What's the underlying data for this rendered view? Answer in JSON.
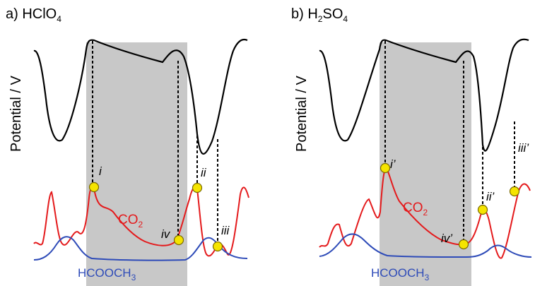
{
  "chart_data": [
    {
      "type": "line",
      "panel": "a",
      "title": {
        "prefix": "a) HClO",
        "sub": "4"
      },
      "ylabel": "Potential / V",
      "colors": {
        "potential": "#000000",
        "co2": "#e41a1c",
        "hcooch3": "#2e4bb8",
        "shade": "#c8c8c8",
        "marker": "#f5e400"
      },
      "series": [
        {
          "name": "CO2",
          "label_main": "CO",
          "label_sub": "2"
        },
        {
          "name": "HCOOCH3",
          "label_main": "HCOOCH",
          "label_sub": "3"
        }
      ],
      "markers": [
        {
          "label": "i"
        },
        {
          "label": "ii"
        },
        {
          "label": "iii"
        },
        {
          "label": "iv"
        }
      ]
    },
    {
      "type": "line",
      "panel": "b",
      "title": {
        "prefix": "b) H",
        "sub1": "2",
        "mid": "SO",
        "sub2": "4"
      },
      "ylabel": "Potential / V",
      "colors": {
        "potential": "#000000",
        "co2": "#e41a1c",
        "hcooch3": "#2e4bb8",
        "shade": "#c8c8c8",
        "marker": "#f5e400"
      },
      "series": [
        {
          "name": "CO2",
          "label_main": "CO",
          "label_sub": "2"
        },
        {
          "name": "HCOOCH3",
          "label_main": "HCOOCH",
          "label_sub": "3"
        }
      ],
      "markers": [
        {
          "label": "i’"
        },
        {
          "label": "ii’"
        },
        {
          "label": "iii’"
        },
        {
          "label": "iv’"
        }
      ]
    }
  ]
}
